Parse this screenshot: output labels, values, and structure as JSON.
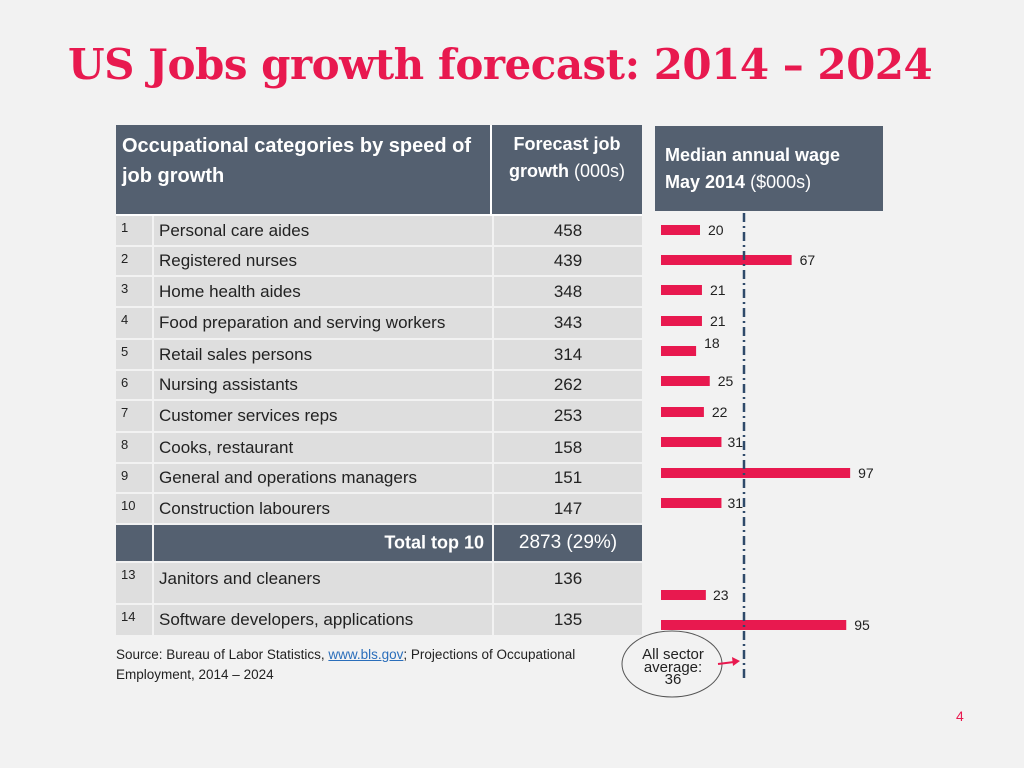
{
  "title": "US Jobs growth forecast: 2014 – 2024",
  "table": {
    "header_col1": "Occupational categories by speed of job growth",
    "header_col2_bold": "Forecast job growth",
    "header_col2_unit": "(000s)",
    "rows": [
      {
        "rank": "1",
        "label": "Personal care aides",
        "value": "458"
      },
      {
        "rank": "2",
        "label": "Registered nurses",
        "value": "439"
      },
      {
        "rank": "3",
        "label": "Home health aides",
        "value": "348"
      },
      {
        "rank": "4",
        "label": "Food preparation and serving workers",
        "value": "343"
      },
      {
        "rank": "5",
        "label": "Retail sales persons",
        "value": "314"
      },
      {
        "rank": "6",
        "label": "Nursing assistants",
        "value": "262"
      },
      {
        "rank": "7",
        "label": "Customer services reps",
        "value": "253"
      },
      {
        "rank": "8",
        "label": "Cooks, restaurant",
        "value": "158"
      },
      {
        "rank": "9",
        "label": "General and operations managers",
        "value": "151"
      },
      {
        "rank": "10",
        "label": "Construction labourers",
        "value": "147"
      }
    ],
    "total_label": "Total top 10",
    "total_value": "2873 (29%)",
    "extra_rows": [
      {
        "rank": "13",
        "label": "Janitors and cleaners",
        "value": "136"
      },
      {
        "rank": "14",
        "label": "Software developers, applications",
        "value": "135"
      }
    ]
  },
  "wage_header": {
    "bold": "Median annual wage May 2014",
    "unit": "($000s)"
  },
  "chart_data": {
    "type": "bar",
    "orientation": "horizontal",
    "categories": [
      "Personal care aides",
      "Registered nurses",
      "Home health aides",
      "Food preparation and serving workers",
      "Retail sales persons",
      "Nursing assistants",
      "Customer services reps",
      "Cooks, restaurant",
      "General and operations managers",
      "Construction labourers",
      "Janitors and cleaners",
      "Software developers, applications"
    ],
    "values": [
      20,
      67,
      21,
      21,
      18,
      25,
      22,
      31,
      97,
      31,
      23,
      95
    ],
    "reference_line": {
      "label": "All sector average:",
      "value": 36
    },
    "bar_color": "#e8194f",
    "line_color": "#2f4a6a"
  },
  "source": {
    "prefix": "Source: Bureau of Labor Statistics,",
    "link": "www.bls.gov",
    "suffix": "; Projections of Occupational Employment, 2014 – 2024"
  },
  "page_number": "4",
  "colors": {
    "accent": "#e8194f",
    "header_bg": "#546070",
    "cell_bg": "#dedede"
  }
}
